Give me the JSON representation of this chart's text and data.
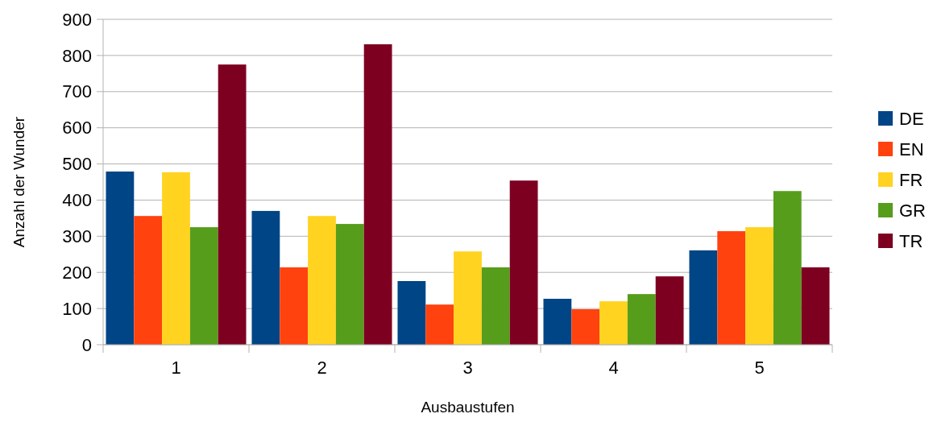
{
  "chart_data": {
    "type": "bar",
    "xlabel": "Ausbaustufen",
    "ylabel": "Anzahl der Wunder",
    "categories": [
      "1",
      "2",
      "3",
      "4",
      "5"
    ],
    "series": [
      {
        "name": "DE",
        "color": "#004586",
        "values": [
          479,
          370,
          176,
          127,
          261
        ]
      },
      {
        "name": "EN",
        "color": "#ff420e",
        "values": [
          356,
          214,
          111,
          98,
          314
        ]
      },
      {
        "name": "FR",
        "color": "#ffd320",
        "values": [
          477,
          356,
          258,
          120,
          325
        ]
      },
      {
        "name": "GR",
        "color": "#579d1c",
        "values": [
          325,
          334,
          214,
          140,
          425
        ]
      },
      {
        "name": "TR",
        "color": "#7e0021",
        "values": [
          775,
          831,
          454,
          189,
          214
        ]
      }
    ],
    "ylim": [
      0,
      900
    ],
    "yticks": [
      0,
      100,
      200,
      300,
      400,
      500,
      600,
      700,
      800,
      900
    ],
    "grid": "y",
    "legend": "right"
  }
}
